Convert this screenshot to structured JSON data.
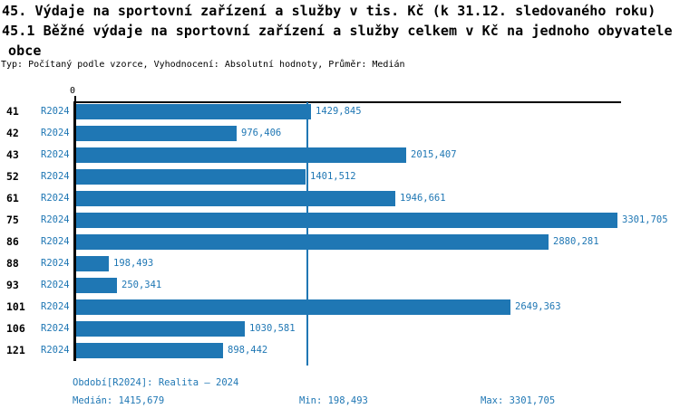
{
  "title": {
    "line1": "45. Výdaje na sportovní zařízení a služby v tis. Kč (k 31.12. sledovaného roku)",
    "line2": "45.1 Běžné výdaje na sportovní zařízení a služby celkem v Kč na jednoho obyvatele",
    "line3": "obce",
    "meta": "Typ: Počítaný podle vzorce, Vyhodnocení: Absolutní hodnoty, Průměr: Medián"
  },
  "chart_data": {
    "type": "bar",
    "orientation": "horizontal",
    "axis_zero_label": "0",
    "series_label": "R2024",
    "categories": [
      "41",
      "42",
      "43",
      "52",
      "61",
      "75",
      "86",
      "88",
      "93",
      "101",
      "106",
      "121"
    ],
    "values": [
      1429.845,
      976.406,
      2015.407,
      1401.512,
      1946.661,
      3301.705,
      2880.281,
      198.493,
      250.341,
      2649.363,
      1030.581,
      898.442
    ],
    "value_labels": [
      "1429,845",
      "976,406",
      "2015,407",
      "1401,512",
      "1946,661",
      "3301,705",
      "2880,281",
      "198,493",
      "250,341",
      "2649,363",
      "1030,581",
      "898,442"
    ],
    "xlim": [
      0,
      3335
    ],
    "median": 1415.679,
    "min": 198.493,
    "max": 3301.705,
    "grid": "off",
    "legend": "none",
    "colors": {
      "bar": "#1f77b4",
      "value_label": "#1f77b4",
      "median_line": "#1f77b4",
      "axis": "#000000"
    }
  },
  "footer": {
    "period": "Období[R2024]: Realita – 2024",
    "median": "Medián: 1415,679",
    "min": "Min: 198,493",
    "max": "Max: 3301,705"
  }
}
